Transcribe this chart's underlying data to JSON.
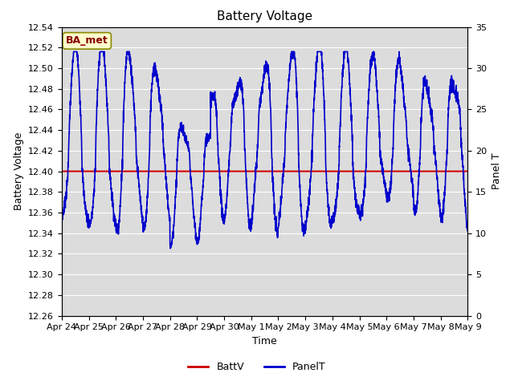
{
  "title": "Battery Voltage",
  "xlabel": "Time",
  "ylabel_left": "Battery Voltage",
  "ylabel_right": "Panel T",
  "left_ylim": [
    12.26,
    12.54
  ],
  "right_ylim": [
    0,
    35
  ],
  "left_yticks": [
    12.26,
    12.28,
    12.3,
    12.32,
    12.34,
    12.36,
    12.38,
    12.4,
    12.42,
    12.44,
    12.46,
    12.48,
    12.5,
    12.52,
    12.54
  ],
  "right_yticks": [
    0,
    5,
    10,
    15,
    20,
    25,
    30,
    35
  ],
  "xtick_labels": [
    "Apr 24",
    "Apr 25",
    "Apr 26",
    "Apr 27",
    "Apr 28",
    "Apr 29",
    "Apr 30",
    "May 1",
    "May 2",
    "May 3",
    "May 4",
    "May 5",
    "May 6",
    "May 7",
    "May 8",
    "May 9"
  ],
  "battv_value": 12.4,
  "battv_color": "#cc0000",
  "panelt_color": "#0000cc",
  "bg_color": "#dcdcdc",
  "annotation_text": "BA_met",
  "annotation_color": "#880000",
  "annotation_bg": "#ffffcc",
  "annotation_edge": "#888800",
  "legend_battv": "BattV",
  "legend_panelt": "PanelT",
  "title_fontsize": 11,
  "axis_fontsize": 9,
  "tick_fontsize": 8
}
